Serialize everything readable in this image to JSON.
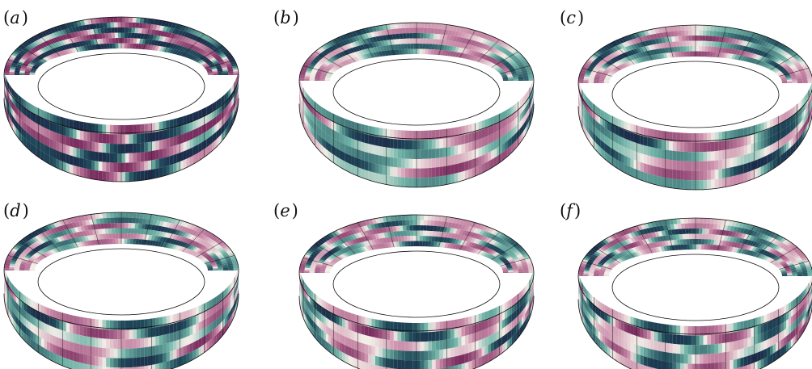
{
  "panels": [
    {
      "label_open": "(",
      "label_letter": "a",
      "label_close": ")",
      "pattern": "smooth-bands"
    },
    {
      "label_open": "(",
      "label_letter": "b",
      "label_close": ")",
      "pattern": "vortex-pairs"
    },
    {
      "label_open": "(",
      "label_letter": "c",
      "label_close": ")",
      "pattern": "vortex-pairs"
    },
    {
      "label_open": "(",
      "label_letter": "d",
      "label_close": ")",
      "pattern": "vortex-pairs"
    },
    {
      "label_open": "(",
      "label_letter": "e",
      "label_close": ")",
      "pattern": "vortex-pairs"
    },
    {
      "label_open": "(",
      "label_letter": "f",
      "label_close": ")",
      "pattern": "vortex-pairs"
    }
  ],
  "colors": {
    "positive": "#7a2d5f",
    "positive_light": "#c98ba8",
    "neutral": "#f3eee8",
    "negative_light": "#6fb3a6",
    "negative": "#1f4a5a",
    "deep_negative": "#1b2d4a",
    "mesh_line": "#222222",
    "outline": "#111111"
  }
}
